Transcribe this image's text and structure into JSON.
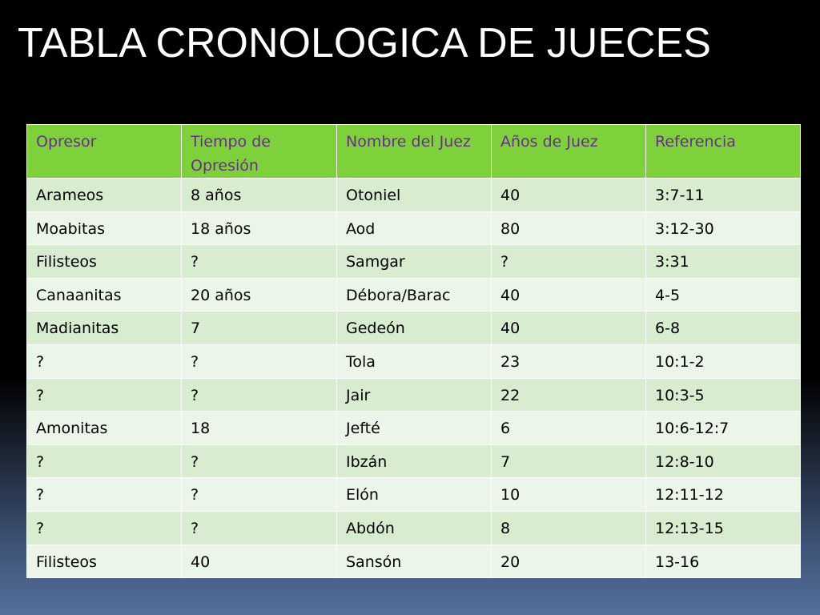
{
  "title": "TABLA CRONOLOGICA DE JUECES",
  "table": {
    "headers": [
      "Opresor",
      "Tiempo de Opresión",
      "Nombre del Juez",
      "Años de Juez",
      "Referencia"
    ],
    "rows": [
      [
        "Arameos",
        "8 años",
        "Otoniel",
        "40",
        "3:7-11"
      ],
      [
        "Moabitas",
        "18 años",
        "Aod",
        "80",
        "3:12-30"
      ],
      [
        "Filisteos",
        "?",
        "Samgar",
        "?",
        "3:31"
      ],
      [
        "Canaanitas",
        "20 años",
        "Débora/Barac",
        "40",
        "4-5"
      ],
      [
        "Madianitas",
        "7",
        "Gedeón",
        "40",
        "6-8"
      ],
      [
        "?",
        "?",
        "Tola",
        "23",
        "10:1-2"
      ],
      [
        "?",
        "?",
        "Jair",
        "22",
        "10:3-5"
      ],
      [
        "Amonitas",
        "18",
        "Jefté",
        "6",
        "10:6-12:7"
      ],
      [
        "?",
        "?",
        "Ibzán",
        "7",
        "12:8-10"
      ],
      [
        "?",
        "?",
        "Elón",
        "10",
        "12:11-12"
      ],
      [
        "?",
        "?",
        "Abdón",
        "8",
        "12:13-15"
      ],
      [
        "Filisteos",
        "40",
        "Sansón",
        "20",
        "13-16"
      ]
    ]
  }
}
